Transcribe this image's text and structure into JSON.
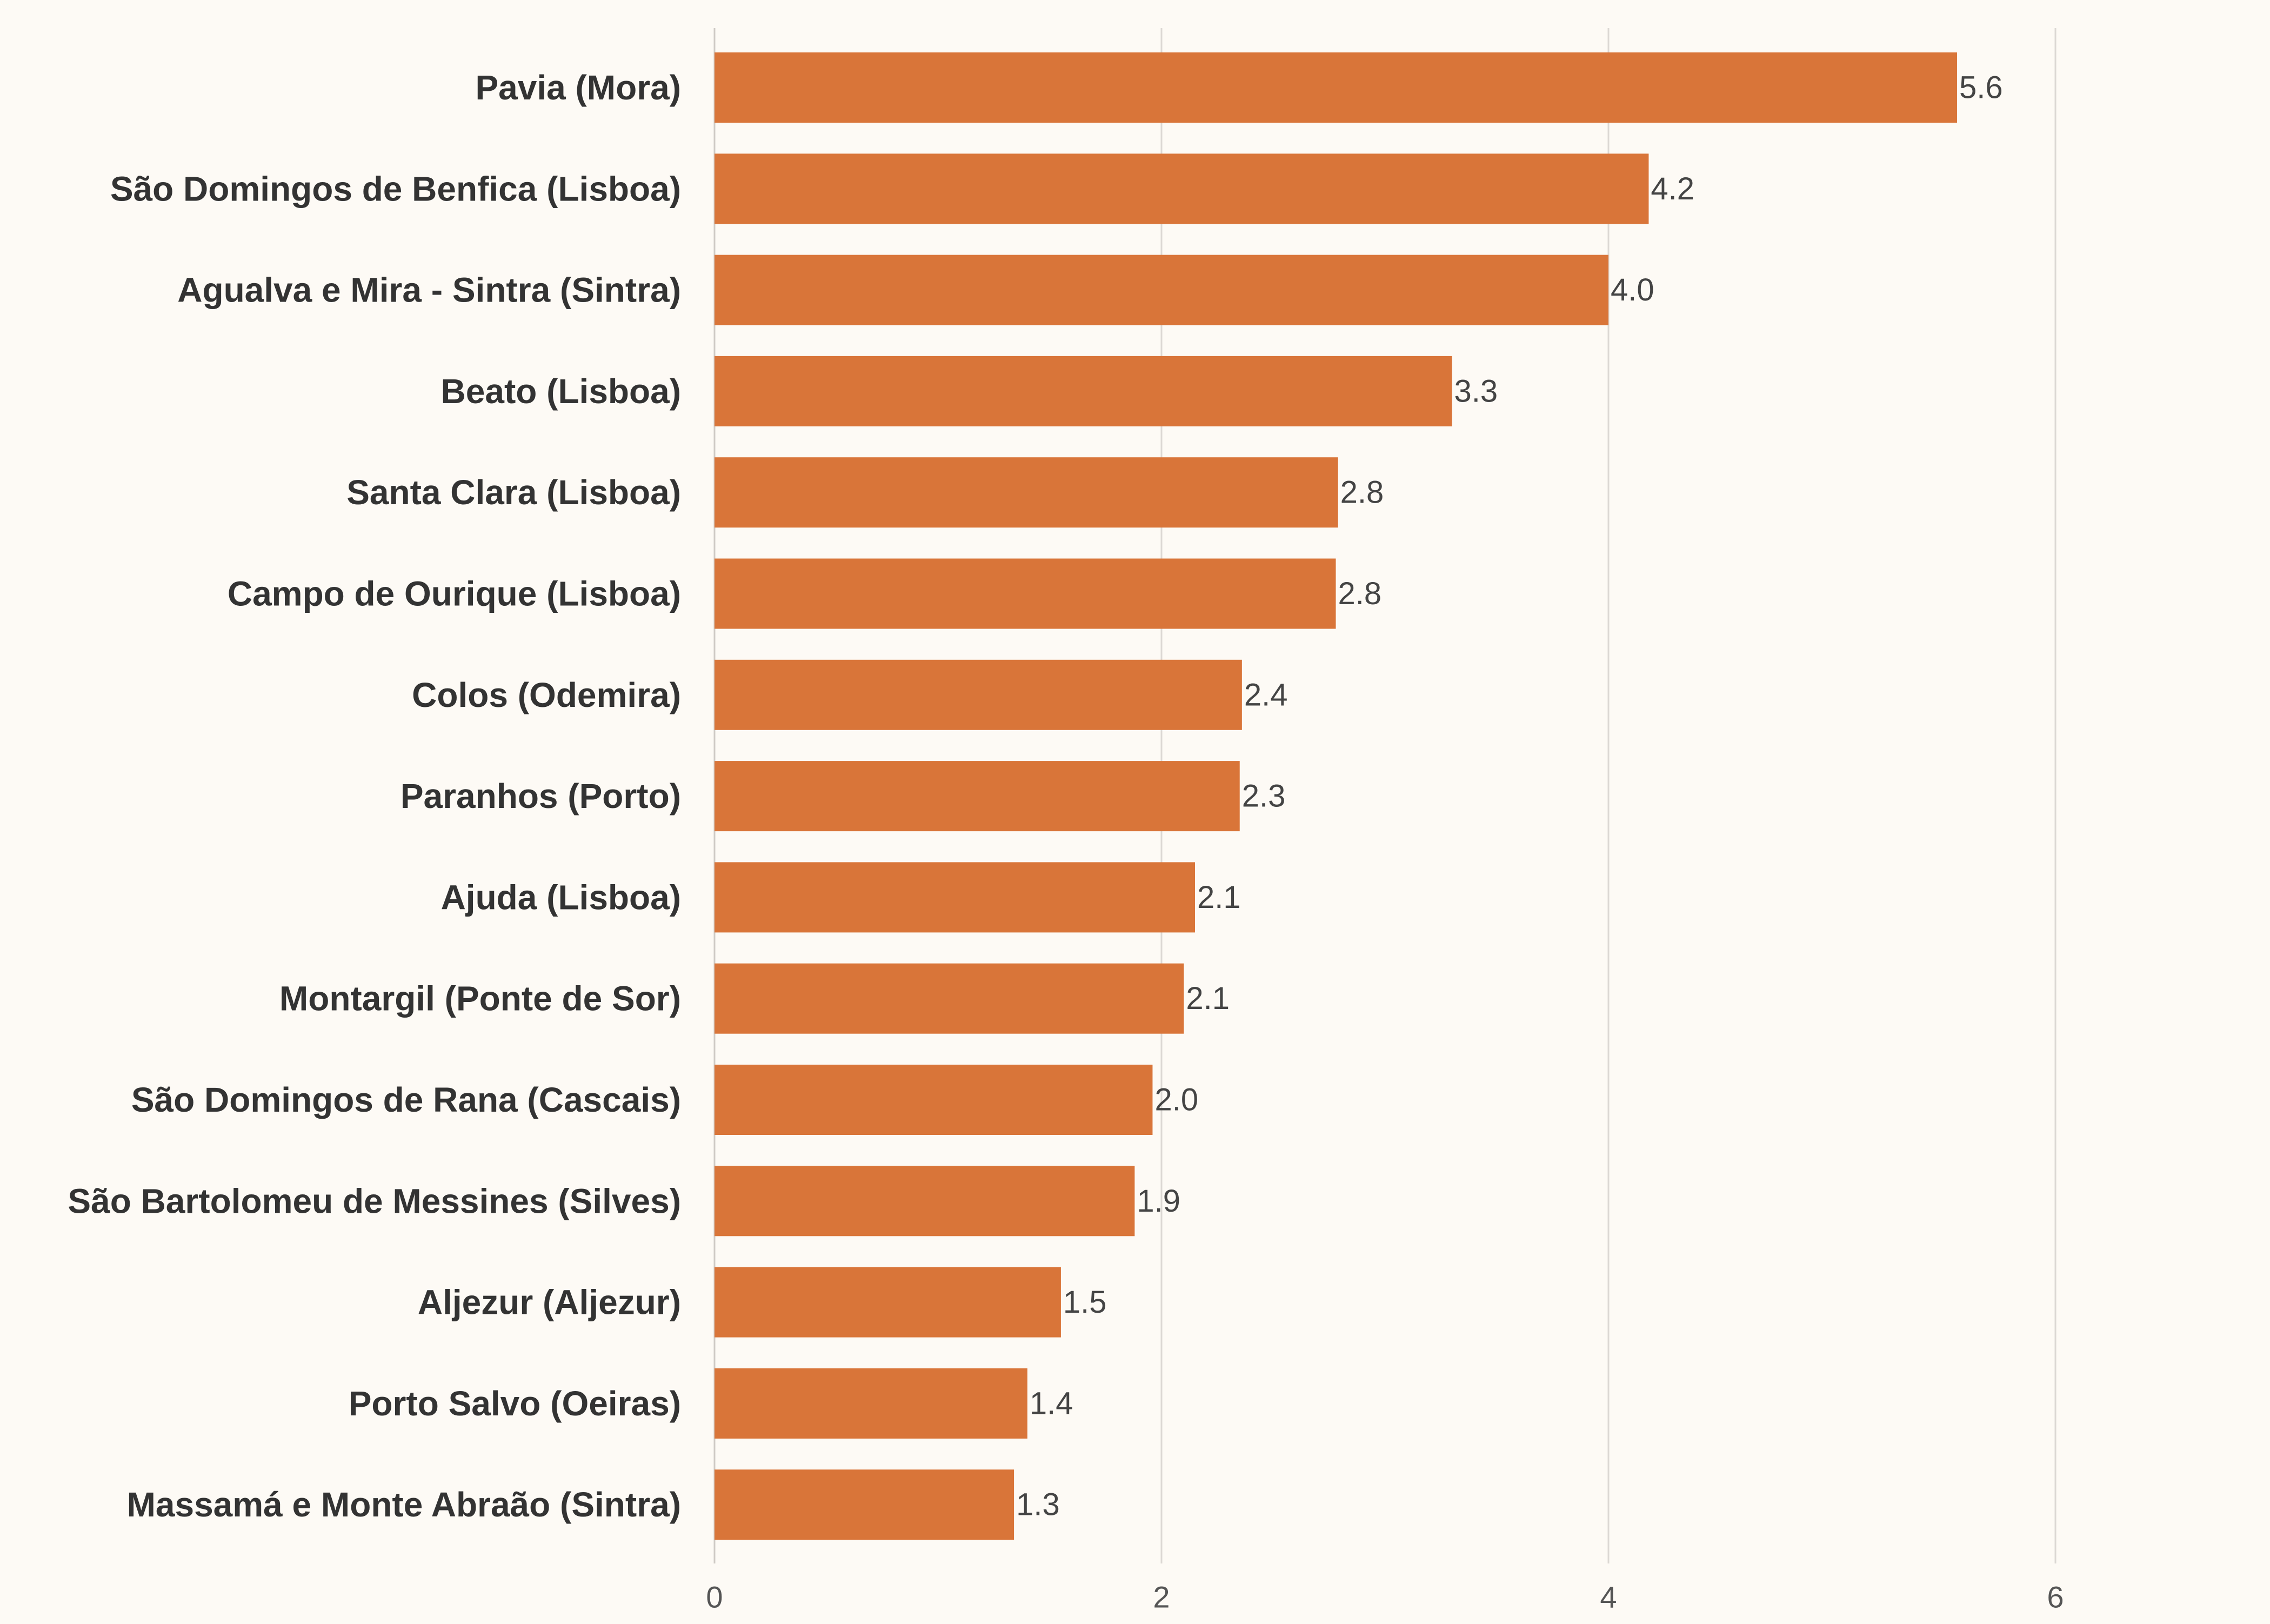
{
  "chart_data": {
    "type": "bar",
    "orientation": "horizontal",
    "title": "",
    "xlabel": "",
    "ylabel": "",
    "categories": [
      "Pavia (Mora)",
      "São Domingos de Benfica (Lisboa)",
      "Agualva e Mira - Sintra (Sintra)",
      "Beato (Lisboa)",
      "Santa Clara (Lisboa)",
      "Campo de Ourique (Lisboa)",
      "Colos (Odemira)",
      "Paranhos (Porto)",
      "Ajuda (Lisboa)",
      "Montargil (Ponte de Sor)",
      "São Domingos de Rana (Cascais)",
      "São Bartolomeu de Messines (Silves)",
      "Aljezur (Aljezur)",
      "Porto Salvo (Oeiras)",
      "Massamá e Monte Abraão (Sintra)"
    ],
    "values": [
      5.56,
      4.18,
      4.0,
      3.3,
      2.79,
      2.78,
      2.36,
      2.35,
      2.15,
      2.1,
      1.96,
      1.88,
      1.55,
      1.4,
      1.34
    ],
    "value_labels": [
      "5.6",
      "4.2",
      "4.0",
      "3.3",
      "2.8",
      "2.8",
      "2.4",
      "2.3",
      "2.1",
      "2.1",
      "2.0",
      "1.9",
      "1.5",
      "1.4",
      "1.3"
    ],
    "xlim": [
      0,
      7
    ],
    "xticks": [
      0,
      2,
      4,
      6
    ],
    "xtick_labels": [
      "0",
      "2",
      "4",
      "6"
    ],
    "grid": "vertical",
    "legend": "none",
    "bar_color": "#d97539",
    "background_color": "#fdfaf5"
  }
}
